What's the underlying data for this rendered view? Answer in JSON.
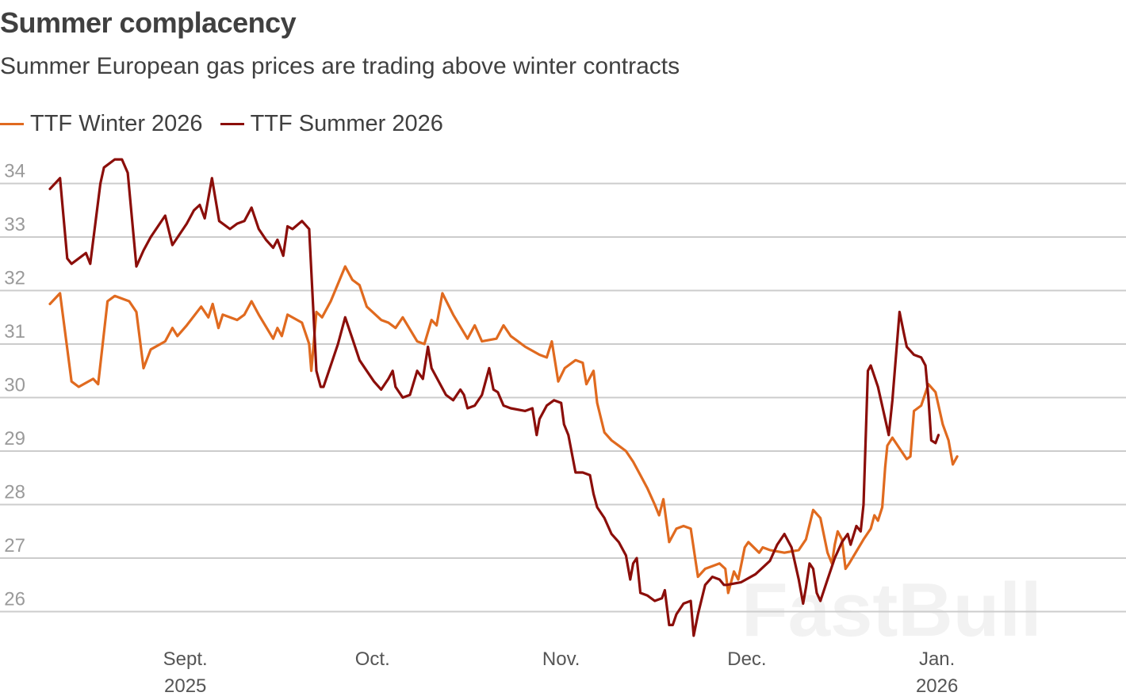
{
  "header": {
    "title": "Summer complacency",
    "subtitle": "Summer European gas prices are trading above winter contracts"
  },
  "watermark": "FastBull",
  "colors": {
    "winter": "#e06a1f",
    "summer": "#8b0e0a",
    "grid": "#cccccc"
  },
  "chart_data": {
    "type": "line",
    "title": "Summer complacency",
    "subtitle": "Summer European gas prices are trading above winter contracts",
    "xlabel": "",
    "ylabel": "",
    "ylim": [
      25.4,
      34.6
    ],
    "yticks": [
      26,
      27,
      28,
      29,
      30,
      31,
      32,
      33,
      34
    ],
    "xlim": [
      0,
      157
    ],
    "xticks": [
      {
        "pos": 18.8,
        "label": "Sept.",
        "sub": "2025"
      },
      {
        "pos": 44.8,
        "label": "Oct.",
        "sub": ""
      },
      {
        "pos": 71.0,
        "label": "Nov.",
        "sub": ""
      },
      {
        "pos": 96.8,
        "label": "Dec.",
        "sub": ""
      },
      {
        "pos": 123.2,
        "label": "Jan.",
        "sub": "2026"
      }
    ],
    "legend_position": "top-left",
    "series": [
      {
        "name": "TTF Winter 2026",
        "color": "#e06a1f",
        "points": [
          [
            0,
            31.75
          ],
          [
            1.4,
            31.95
          ],
          [
            3,
            30.3
          ],
          [
            4,
            30.2
          ],
          [
            6,
            30.35
          ],
          [
            6.7,
            30.25
          ],
          [
            8,
            31.8
          ],
          [
            9,
            31.9
          ],
          [
            11,
            31.8
          ],
          [
            12,
            31.6
          ],
          [
            13,
            30.55
          ],
          [
            14,
            30.9
          ],
          [
            16,
            31.05
          ],
          [
            17,
            31.3
          ],
          [
            17.7,
            31.15
          ],
          [
            19,
            31.35
          ],
          [
            21,
            31.7
          ],
          [
            22,
            31.5
          ],
          [
            22.6,
            31.75
          ],
          [
            23.4,
            31.3
          ],
          [
            24,
            31.55
          ],
          [
            26,
            31.45
          ],
          [
            27,
            31.55
          ],
          [
            28,
            31.8
          ],
          [
            29,
            31.55
          ],
          [
            31,
            31.1
          ],
          [
            31.6,
            31.3
          ],
          [
            32.2,
            31.15
          ],
          [
            33,
            31.55
          ],
          [
            35,
            31.4
          ],
          [
            36,
            31.0
          ],
          [
            36.3,
            30.5
          ],
          [
            37,
            31.6
          ],
          [
            37.8,
            31.5
          ],
          [
            39,
            31.8
          ],
          [
            41,
            32.45
          ],
          [
            42,
            32.2
          ],
          [
            43,
            32.1
          ],
          [
            44,
            31.7
          ],
          [
            46,
            31.45
          ],
          [
            47,
            31.4
          ],
          [
            48,
            31.3
          ],
          [
            49,
            31.5
          ],
          [
            51,
            31.05
          ],
          [
            52,
            31.0
          ],
          [
            53,
            31.45
          ],
          [
            53.7,
            31.35
          ],
          [
            54.5,
            31.95
          ],
          [
            56,
            31.55
          ],
          [
            58,
            31.1
          ],
          [
            59,
            31.35
          ],
          [
            60,
            31.05
          ],
          [
            62,
            31.1
          ],
          [
            63,
            31.35
          ],
          [
            64,
            31.15
          ],
          [
            65,
            31.05
          ],
          [
            66,
            30.95
          ],
          [
            68,
            30.8
          ],
          [
            69,
            30.75
          ],
          [
            69.7,
            31.05
          ],
          [
            70.6,
            30.3
          ],
          [
            71.5,
            30.55
          ],
          [
            73,
            30.7
          ],
          [
            74,
            30.65
          ],
          [
            74.5,
            30.25
          ],
          [
            75.5,
            30.5
          ],
          [
            76,
            29.9
          ],
          [
            77,
            29.35
          ],
          [
            78,
            29.2
          ],
          [
            79,
            29.1
          ],
          [
            80,
            29.0
          ],
          [
            81,
            28.8
          ],
          [
            82,
            28.55
          ],
          [
            83,
            28.3
          ],
          [
            84,
            28.0
          ],
          [
            84.6,
            27.8
          ],
          [
            85.2,
            28.1
          ],
          [
            86,
            27.3
          ],
          [
            87,
            27.55
          ],
          [
            88,
            27.6
          ],
          [
            89,
            27.55
          ],
          [
            90,
            26.65
          ],
          [
            91,
            26.8
          ],
          [
            92,
            26.85
          ],
          [
            93,
            26.9
          ],
          [
            93.8,
            26.8
          ],
          [
            94.2,
            26.35
          ],
          [
            95,
            26.75
          ],
          [
            95.6,
            26.6
          ],
          [
            96.5,
            27.2
          ],
          [
            97,
            27.3
          ],
          [
            98.5,
            27.1
          ],
          [
            99,
            27.2
          ],
          [
            100,
            27.15
          ],
          [
            102,
            27.1
          ],
          [
            104,
            27.15
          ],
          [
            105,
            27.35
          ],
          [
            106,
            27.9
          ],
          [
            107,
            27.75
          ],
          [
            108,
            27.1
          ],
          [
            108.6,
            26.9
          ],
          [
            109,
            27.25
          ],
          [
            109.4,
            27.5
          ],
          [
            110,
            27.35
          ],
          [
            110.5,
            26.8
          ],
          [
            111,
            26.9
          ],
          [
            113,
            27.35
          ],
          [
            114,
            27.55
          ],
          [
            114.5,
            27.8
          ],
          [
            115,
            27.7
          ],
          [
            115.6,
            27.95
          ],
          [
            116,
            28.7
          ],
          [
            116.3,
            29.1
          ],
          [
            117,
            29.25
          ],
          [
            118,
            29.05
          ],
          [
            119,
            28.85
          ],
          [
            119.5,
            28.9
          ],
          [
            120,
            29.75
          ],
          [
            121,
            29.85
          ],
          [
            122,
            30.25
          ],
          [
            123,
            30.1
          ],
          [
            124,
            29.5
          ],
          [
            124.8,
            29.2
          ],
          [
            125.4,
            28.75
          ],
          [
            126,
            28.9
          ]
        ]
      },
      {
        "name": "TTF Summer 2026",
        "color": "#8b0e0a",
        "points": [
          [
            0,
            33.9
          ],
          [
            1.4,
            34.1
          ],
          [
            2.4,
            32.6
          ],
          [
            3,
            32.5
          ],
          [
            5,
            32.7
          ],
          [
            5.6,
            32.5
          ],
          [
            7,
            34.0
          ],
          [
            7.5,
            34.3
          ],
          [
            9,
            34.45
          ],
          [
            10,
            34.45
          ],
          [
            10.8,
            34.2
          ],
          [
            12,
            32.45
          ],
          [
            13,
            32.75
          ],
          [
            14,
            33.0
          ],
          [
            15,
            33.2
          ],
          [
            16,
            33.4
          ],
          [
            17,
            32.85
          ],
          [
            19,
            33.25
          ],
          [
            20,
            33.5
          ],
          [
            20.8,
            33.6
          ],
          [
            21.5,
            33.35
          ],
          [
            22.5,
            34.1
          ],
          [
            23.5,
            33.3
          ],
          [
            25,
            33.15
          ],
          [
            26,
            33.25
          ],
          [
            27,
            33.3
          ],
          [
            28,
            33.55
          ],
          [
            29,
            33.15
          ],
          [
            30,
            32.95
          ],
          [
            31,
            32.8
          ],
          [
            31.6,
            32.95
          ],
          [
            32.4,
            32.65
          ],
          [
            33,
            33.2
          ],
          [
            33.7,
            33.15
          ],
          [
            35,
            33.3
          ],
          [
            36,
            33.15
          ],
          [
            37,
            30.5
          ],
          [
            37.6,
            30.2
          ],
          [
            38,
            30.2
          ],
          [
            40,
            31.0
          ],
          [
            41,
            31.5
          ],
          [
            42,
            31.1
          ],
          [
            43,
            30.7
          ],
          [
            44,
            30.5
          ],
          [
            45,
            30.3
          ],
          [
            46,
            30.15
          ],
          [
            47,
            30.35
          ],
          [
            47.6,
            30.5
          ],
          [
            48,
            30.2
          ],
          [
            49,
            30.0
          ],
          [
            50,
            30.05
          ],
          [
            51,
            30.5
          ],
          [
            51.8,
            30.35
          ],
          [
            52.5,
            30.95
          ],
          [
            53,
            30.55
          ],
          [
            55,
            30.05
          ],
          [
            56,
            29.95
          ],
          [
            57,
            30.15
          ],
          [
            57.5,
            30.05
          ],
          [
            58,
            29.8
          ],
          [
            59,
            29.85
          ],
          [
            60,
            30.05
          ],
          [
            61,
            30.55
          ],
          [
            61.6,
            30.15
          ],
          [
            62.2,
            30.1
          ],
          [
            63,
            29.85
          ],
          [
            64,
            29.8
          ],
          [
            66,
            29.75
          ],
          [
            67,
            29.8
          ],
          [
            67.6,
            29.3
          ],
          [
            68,
            29.6
          ],
          [
            69,
            29.85
          ],
          [
            70,
            29.95
          ],
          [
            71,
            29.9
          ],
          [
            71.4,
            29.5
          ],
          [
            72,
            29.3
          ],
          [
            73,
            28.6
          ],
          [
            74,
            28.6
          ],
          [
            75,
            28.55
          ],
          [
            75.5,
            28.2
          ],
          [
            76,
            27.95
          ],
          [
            77,
            27.75
          ],
          [
            78,
            27.45
          ],
          [
            79,
            27.3
          ],
          [
            80,
            27.05
          ],
          [
            80.6,
            26.6
          ],
          [
            81,
            26.9
          ],
          [
            81.5,
            27.0
          ],
          [
            82,
            26.35
          ],
          [
            83,
            26.3
          ],
          [
            84,
            26.2
          ],
          [
            85,
            26.25
          ],
          [
            85.4,
            26.4
          ],
          [
            86,
            25.75
          ],
          [
            86.5,
            25.75
          ],
          [
            87,
            25.95
          ],
          [
            88,
            26.15
          ],
          [
            89,
            26.2
          ],
          [
            89.4,
            25.55
          ],
          [
            90,
            25.95
          ],
          [
            91,
            26.5
          ],
          [
            92,
            26.65
          ],
          [
            93,
            26.6
          ],
          [
            93.6,
            26.5
          ],
          [
            94,
            26.5
          ],
          [
            96,
            26.55
          ],
          [
            98,
            26.7
          ],
          [
            100,
            26.95
          ],
          [
            101,
            27.25
          ],
          [
            102,
            27.45
          ],
          [
            103,
            27.2
          ],
          [
            104,
            26.6
          ],
          [
            104.6,
            26.15
          ],
          [
            105,
            26.45
          ],
          [
            105.5,
            26.9
          ],
          [
            106,
            26.8
          ],
          [
            106.5,
            26.35
          ],
          [
            107,
            26.2
          ],
          [
            108,
            26.6
          ],
          [
            109,
            27.0
          ],
          [
            110,
            27.3
          ],
          [
            110.8,
            27.45
          ],
          [
            111.2,
            27.25
          ],
          [
            112,
            27.6
          ],
          [
            112.6,
            27.5
          ],
          [
            113,
            28.0
          ],
          [
            113.6,
            30.5
          ],
          [
            114,
            30.6
          ],
          [
            115,
            30.2
          ],
          [
            116,
            29.6
          ],
          [
            116.5,
            29.3
          ],
          [
            117,
            29.95
          ],
          [
            118,
            31.6
          ],
          [
            118.6,
            31.2
          ],
          [
            119,
            30.95
          ],
          [
            120,
            30.8
          ],
          [
            121,
            30.75
          ],
          [
            121.6,
            30.6
          ],
          [
            122,
            30.0
          ],
          [
            122.4,
            29.2
          ],
          [
            123,
            29.15
          ],
          [
            123.4,
            29.3
          ]
        ]
      }
    ]
  }
}
